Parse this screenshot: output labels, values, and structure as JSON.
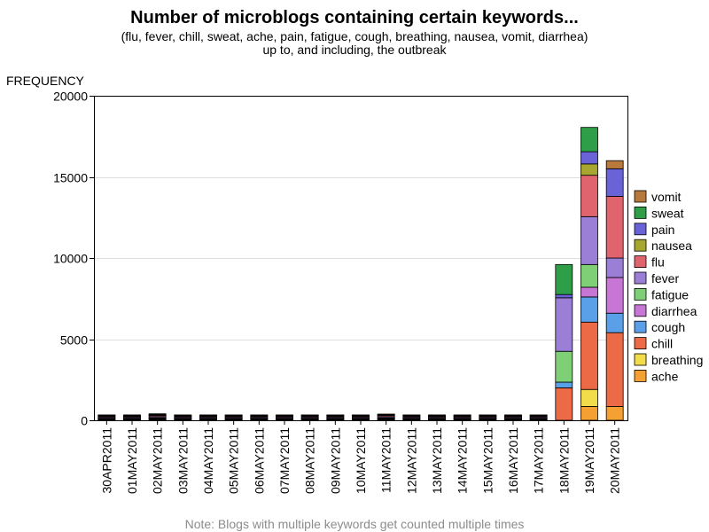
{
  "title": "Number of microblogs containing certain keywords...",
  "subtitle_line1": "(flu, fever, chill, sweat, ache, pain, fatigue, cough, breathing, nausea, vomit, diarrhea)",
  "subtitle_line2": "up to, and including, the outbreak",
  "footnote": "Note: Blogs with multiple keywords get counted multiple times",
  "colors": {
    "ache": "#f5a033",
    "breathing": "#f2dc4a",
    "chill": "#ec6a45",
    "cough": "#5aa0e8",
    "diarrhea": "#c776d6",
    "fatigue": "#7fcf77",
    "fever": "#9b7ed6",
    "flu": "#e0646e",
    "nausea": "#a6a631",
    "pain": "#6a63d8",
    "sweat": "#2e9e48",
    "vomit": "#b87a3c"
  },
  "chart_data": {
    "type": "bar",
    "stacked": true,
    "ylabel": "FREQUENCY",
    "ylim": [
      0,
      20000
    ],
    "yticks": [
      0,
      5000,
      10000,
      15000,
      20000
    ],
    "grid": true,
    "legend_position": "right",
    "categories": [
      "30APR2011",
      "01MAY2011",
      "02MAY2011",
      "03MAY2011",
      "04MAY2011",
      "05MAY2011",
      "06MAY2011",
      "07MAY2011",
      "08MAY2011",
      "09MAY2011",
      "10MAY2011",
      "11MAY2011",
      "12MAY2011",
      "13MAY2011",
      "14MAY2011",
      "15MAY2011",
      "16MAY2011",
      "17MAY2011",
      "18MAY2011",
      "19MAY2011",
      "20MAY2011"
    ],
    "series": [
      {
        "name": "ache",
        "values": [
          20,
          20,
          25,
          20,
          20,
          20,
          20,
          20,
          20,
          20,
          20,
          25,
          20,
          20,
          20,
          20,
          20,
          20,
          0,
          850,
          850
        ]
      },
      {
        "name": "breathing",
        "values": [
          20,
          20,
          20,
          20,
          20,
          20,
          20,
          20,
          20,
          20,
          20,
          20,
          20,
          20,
          20,
          20,
          20,
          20,
          0,
          1050,
          0
        ]
      },
      {
        "name": "chill",
        "values": [
          30,
          30,
          40,
          30,
          30,
          30,
          30,
          30,
          30,
          30,
          30,
          35,
          30,
          30,
          30,
          30,
          30,
          30,
          2000,
          4150,
          4550
        ]
      },
      {
        "name": "cough",
        "values": [
          30,
          30,
          35,
          30,
          30,
          30,
          30,
          30,
          30,
          30,
          30,
          35,
          30,
          30,
          30,
          30,
          30,
          30,
          350,
          1550,
          1200
        ]
      },
      {
        "name": "diarrhea",
        "values": [
          10,
          10,
          15,
          10,
          10,
          10,
          10,
          10,
          10,
          10,
          10,
          10,
          10,
          10,
          10,
          10,
          10,
          10,
          0,
          600,
          2200
        ]
      },
      {
        "name": "fatigue",
        "values": [
          20,
          20,
          25,
          20,
          20,
          20,
          20,
          20,
          20,
          20,
          20,
          25,
          20,
          20,
          20,
          20,
          20,
          20,
          1900,
          1400,
          0
        ]
      },
      {
        "name": "fever",
        "values": [
          60,
          60,
          70,
          60,
          60,
          60,
          60,
          60,
          60,
          60,
          60,
          70,
          60,
          60,
          60,
          60,
          60,
          60,
          3300,
          2950,
          1200
        ]
      },
      {
        "name": "flu",
        "values": [
          60,
          60,
          70,
          60,
          60,
          60,
          60,
          60,
          60,
          60,
          60,
          70,
          60,
          60,
          60,
          60,
          60,
          60,
          0,
          2550,
          3800
        ]
      },
      {
        "name": "nausea",
        "values": [
          10,
          10,
          15,
          10,
          10,
          10,
          10,
          10,
          10,
          10,
          10,
          10,
          10,
          10,
          10,
          10,
          10,
          10,
          0,
          700,
          0
        ]
      },
      {
        "name": "pain",
        "values": [
          40,
          40,
          45,
          40,
          40,
          40,
          40,
          40,
          40,
          40,
          40,
          45,
          40,
          40,
          40,
          40,
          40,
          40,
          200,
          750,
          1700
        ]
      },
      {
        "name": "sweat",
        "values": [
          20,
          20,
          25,
          20,
          20,
          20,
          20,
          20,
          20,
          20,
          20,
          25,
          20,
          20,
          20,
          20,
          20,
          20,
          1850,
          1500,
          0
        ]
      },
      {
        "name": "vomit",
        "values": [
          10,
          10,
          15,
          10,
          10,
          10,
          10,
          10,
          10,
          10,
          10,
          10,
          10,
          10,
          10,
          10,
          10,
          10,
          0,
          0,
          500
        ]
      }
    ]
  }
}
